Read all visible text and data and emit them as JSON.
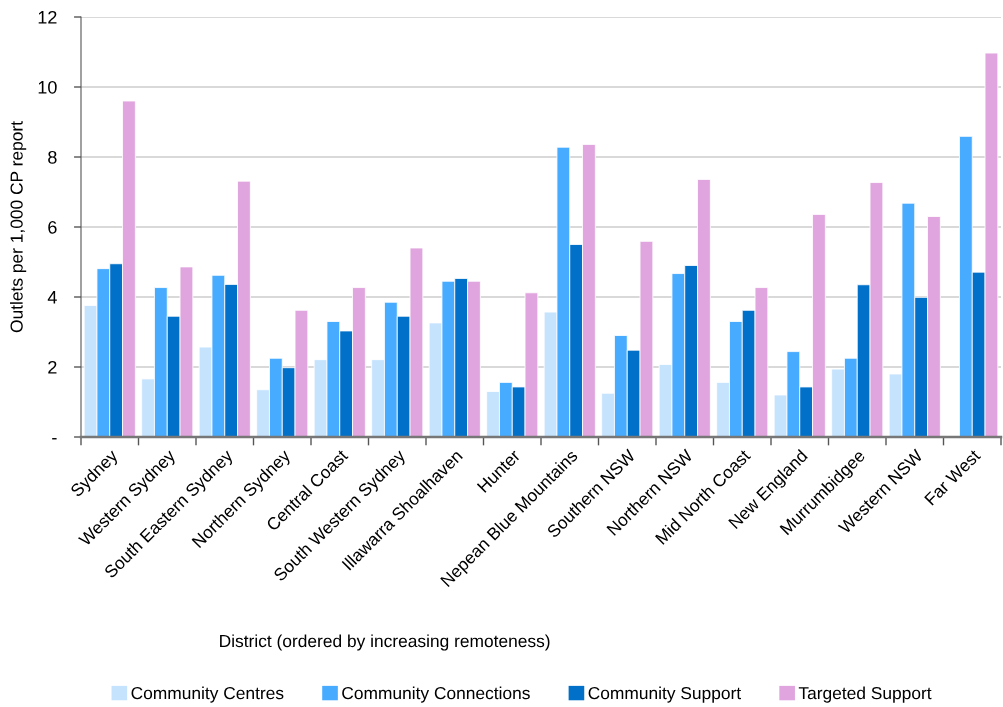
{
  "chart_data": {
    "type": "bar",
    "xlabel": "District (ordered by increasing remoteness)",
    "ylabel": "Outlets per 1,000 CP report",
    "categories": [
      "Sydney",
      "Western Sydney",
      "South Eastern Sydney",
      "Northern Sydney",
      "Central Coast",
      "South Western Sydney",
      "Illawarra Shoalhaven",
      "Hunter",
      "Nepean Blue Mountains",
      "Southern NSW",
      "Northern NSW",
      "Mid North Coast",
      "New England",
      "Murrumbidgee",
      "Western NSW",
      "Far West"
    ],
    "series": [
      {
        "name": "Community Centres",
        "color": "#c5e3fd",
        "values": [
          3.76,
          1.66,
          2.57,
          1.35,
          2.21,
          2.21,
          3.26,
          1.3,
          3.57,
          1.25,
          2.07,
          1.56,
          1.2,
          1.94,
          1.8,
          null
        ]
      },
      {
        "name": "Community Connections",
        "color": "#47abff",
        "values": [
          4.81,
          4.27,
          4.62,
          2.25,
          3.3,
          3.85,
          4.45,
          1.56,
          8.28,
          2.9,
          4.67,
          3.3,
          2.44,
          2.25,
          6.68,
          8.59
        ]
      },
      {
        "name": "Community Support",
        "color": "#0070c8",
        "values": [
          4.95,
          3.45,
          4.36,
          1.98,
          3.03,
          3.45,
          4.53,
          1.43,
          5.5,
          2.48,
          4.9,
          3.62,
          1.43,
          4.35,
          3.99,
          4.71
        ]
      },
      {
        "name": "Targeted Support",
        "color": "#e0a4de",
        "values": [
          9.6,
          4.86,
          7.31,
          3.62,
          4.27,
          5.4,
          4.45,
          4.12,
          8.36,
          5.59,
          7.36,
          4.27,
          6.36,
          7.27,
          6.3,
          10.97
        ]
      }
    ],
    "ylim": [
      0,
      12
    ],
    "yticks": [
      {
        "value": 0,
        "label": "-"
      },
      2,
      4,
      6,
      8,
      10,
      12
    ],
    "grid": "y",
    "legend": "bottom"
  }
}
